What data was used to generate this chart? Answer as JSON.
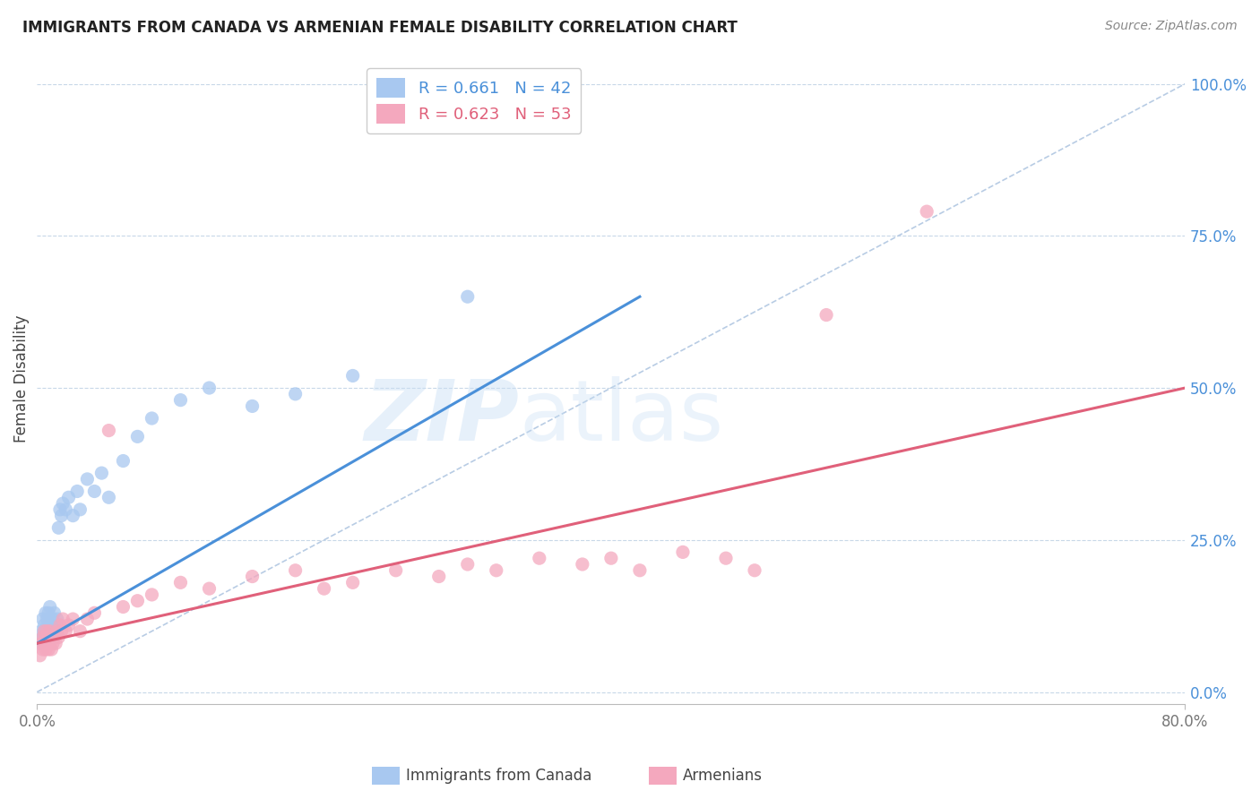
{
  "title": "IMMIGRANTS FROM CANADA VS ARMENIAN FEMALE DISABILITY CORRELATION CHART",
  "source": "Source: ZipAtlas.com",
  "ylabel": "Female Disability",
  "ytick_labels": [
    "0.0%",
    "25.0%",
    "50.0%",
    "75.0%",
    "100.0%"
  ],
  "ytick_values": [
    0.0,
    0.25,
    0.5,
    0.75,
    1.0
  ],
  "xmin": 0.0,
  "xmax": 0.8,
  "ymin": -0.02,
  "ymax": 1.05,
  "legend1_label": "R = 0.661   N = 42",
  "legend2_label": "R = 0.623   N = 53",
  "canada_color": "#a8c8f0",
  "armenian_color": "#f4a8be",
  "canada_line_color": "#4a90d9",
  "armenian_line_color": "#e0607a",
  "diagonal_color": "#b8cce4",
  "watermark_zip": "ZIP",
  "watermark_atlas": "atlas",
  "canada_scatter_x": [
    0.002,
    0.003,
    0.004,
    0.004,
    0.005,
    0.005,
    0.006,
    0.006,
    0.007,
    0.007,
    0.008,
    0.008,
    0.009,
    0.009,
    0.01,
    0.01,
    0.011,
    0.012,
    0.013,
    0.014,
    0.015,
    0.016,
    0.017,
    0.018,
    0.02,
    0.022,
    0.025,
    0.028,
    0.03,
    0.035,
    0.04,
    0.045,
    0.05,
    0.06,
    0.07,
    0.08,
    0.1,
    0.12,
    0.15,
    0.18,
    0.22,
    0.3
  ],
  "canada_scatter_y": [
    0.08,
    0.1,
    0.09,
    0.12,
    0.1,
    0.11,
    0.09,
    0.13,
    0.1,
    0.12,
    0.11,
    0.13,
    0.1,
    0.14,
    0.09,
    0.11,
    0.12,
    0.13,
    0.1,
    0.12,
    0.27,
    0.3,
    0.29,
    0.31,
    0.3,
    0.32,
    0.29,
    0.33,
    0.3,
    0.35,
    0.33,
    0.36,
    0.32,
    0.38,
    0.42,
    0.45,
    0.48,
    0.5,
    0.47,
    0.49,
    0.52,
    0.65
  ],
  "armenian_scatter_x": [
    0.002,
    0.003,
    0.004,
    0.004,
    0.005,
    0.005,
    0.006,
    0.006,
    0.007,
    0.007,
    0.008,
    0.008,
    0.009,
    0.009,
    0.01,
    0.01,
    0.011,
    0.012,
    0.013,
    0.014,
    0.015,
    0.016,
    0.017,
    0.018,
    0.02,
    0.022,
    0.025,
    0.03,
    0.035,
    0.04,
    0.05,
    0.06,
    0.07,
    0.08,
    0.1,
    0.12,
    0.15,
    0.18,
    0.2,
    0.22,
    0.25,
    0.28,
    0.3,
    0.32,
    0.35,
    0.38,
    0.4,
    0.42,
    0.45,
    0.48,
    0.5,
    0.55,
    0.62
  ],
  "armenian_scatter_y": [
    0.06,
    0.08,
    0.07,
    0.09,
    0.08,
    0.1,
    0.07,
    0.09,
    0.08,
    0.1,
    0.07,
    0.09,
    0.08,
    0.1,
    0.07,
    0.09,
    0.08,
    0.09,
    0.08,
    0.1,
    0.09,
    0.11,
    0.1,
    0.12,
    0.1,
    0.11,
    0.12,
    0.1,
    0.12,
    0.13,
    0.43,
    0.14,
    0.15,
    0.16,
    0.18,
    0.17,
    0.19,
    0.2,
    0.17,
    0.18,
    0.2,
    0.19,
    0.21,
    0.2,
    0.22,
    0.21,
    0.22,
    0.2,
    0.23,
    0.22,
    0.2,
    0.62,
    0.79
  ],
  "canada_line_x": [
    0.0,
    0.42
  ],
  "canada_line_y": [
    0.08,
    0.65
  ],
  "armenian_line_x": [
    0.0,
    0.8
  ],
  "armenian_line_y": [
    0.08,
    0.5
  ]
}
